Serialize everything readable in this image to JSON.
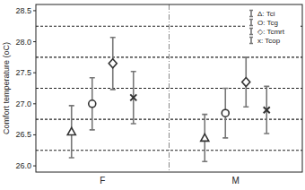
{
  "chart_data": {
    "type": "scatter",
    "y_label": "Comfort temperature (oC)",
    "categories": [
      "F",
      "M"
    ],
    "series": [
      {
        "name": "Δ: Tci",
        "marker": "triangle",
        "color": "#333333",
        "values": [
          26.55,
          26.45
        ],
        "errors": [
          0.42,
          0.38
        ]
      },
      {
        "name": "O: Tcg",
        "marker": "circle",
        "color": "#333333",
        "values": [
          27.0,
          26.85
        ],
        "errors": [
          0.42,
          0.4
        ]
      },
      {
        "name": "◇: Tcmrt",
        "marker": "diamond",
        "color": "#333333",
        "values": [
          27.65,
          27.35
        ],
        "errors": [
          0.42,
          0.4
        ]
      },
      {
        "name": "x: Tcop",
        "marker": "x",
        "color": "#333333",
        "values": [
          27.1,
          26.9
        ],
        "errors": [
          0.42,
          0.38
        ]
      }
    ],
    "ylim": [
      25.9,
      28.6
    ],
    "yticks": [
      {
        "value": 26,
        "label": "26.0"
      },
      {
        "value": 26.5,
        "label": "26.5"
      },
      {
        "value": 27,
        "label": "27.0"
      },
      {
        "value": 27.5,
        "label": "27.5"
      },
      {
        "value": 28,
        "label": "28.0"
      },
      {
        "value": 28.5,
        "label": "28.5"
      }
    ],
    "grid": true,
    "legend": "top-right"
  }
}
